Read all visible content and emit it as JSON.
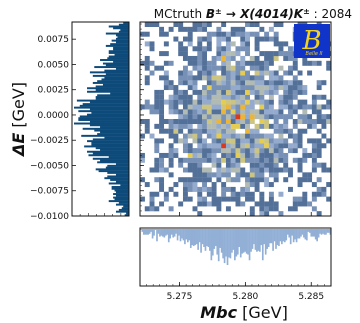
{
  "chart_data": {
    "type": "heatmap",
    "title": {
      "prefix": "MCtruth ",
      "decay": "B",
      "decay_sup": "±",
      "arrow": " → ",
      "state": "X(4014)K",
      "state_sup": "±",
      "suffix": " : 2084"
    },
    "xlabel": {
      "var": "Mbc",
      "unit": " [GeV]"
    },
    "ylabel": {
      "var": "ΔE",
      "unit": " [GeV]"
    },
    "xlim": [
      5.272,
      5.2865
    ],
    "ylim": [
      -0.01,
      0.0092
    ],
    "x_ticks": [
      5.275,
      5.28,
      5.285
    ],
    "x_tick_labels": [
      "5.275",
      "5.280",
      "5.285"
    ],
    "y_ticks": [
      0.0075,
      0.005,
      0.0025,
      0.0,
      -0.0025,
      -0.005,
      -0.0075,
      -0.01
    ],
    "y_tick_labels": [
      "0.0075",
      "0.0050",
      "0.0025",
      "0.0000",
      "−0.0025",
      "−0.0050",
      "−0.0075",
      "−0.0100"
    ],
    "distribution": {
      "x_mean": 5.2793,
      "x_sigma": 0.0028,
      "y_mean": 0.0,
      "y_sigma": 0.0042,
      "entries": 2084
    },
    "colors": {
      "hist_fill": "#0d4a7a",
      "proj_fill": "#92afd6",
      "cmap_low": "#1a3d6a",
      "cmap_mid": "#9fb4d6",
      "cmap_high": "#f2d23a",
      "cmap_peak": "#d83a1f"
    },
    "logo": {
      "glyph": "B",
      "caption": "Belle II",
      "bg": "#1034c8",
      "fg": "#f4d21c"
    }
  }
}
